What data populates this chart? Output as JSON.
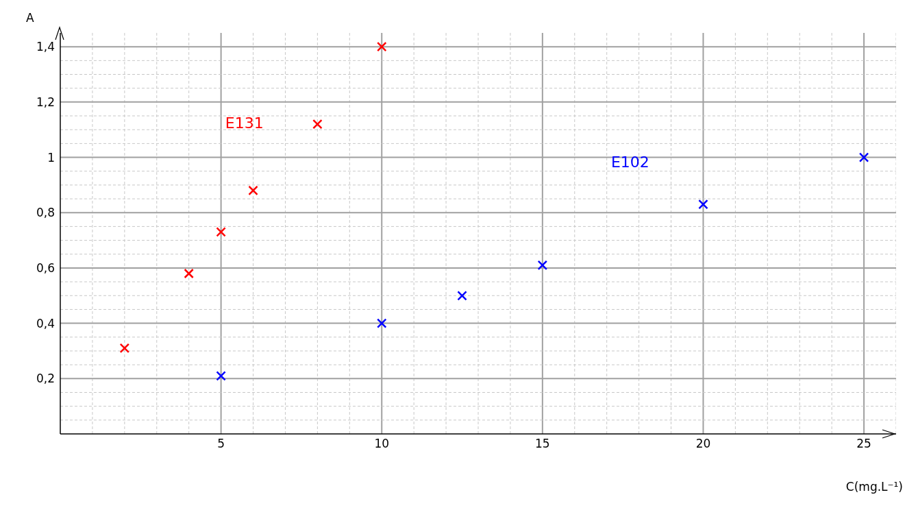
{
  "chart_data": {
    "type": "scatter",
    "xlabel": "C(mg.L⁻¹)",
    "ylabel": "A",
    "xlim": [
      0,
      26
    ],
    "ylim": [
      0,
      1.45
    ],
    "xticks": [
      {
        "value": 1,
        "label": null
      },
      {
        "value": 2,
        "label": null
      },
      {
        "value": 3,
        "label": null
      },
      {
        "value": 4,
        "label": null
      },
      5,
      {
        "value": 6,
        "label": null
      },
      {
        "value": 7,
        "label": null
      },
      {
        "value": 8,
        "label": null
      },
      {
        "value": 9,
        "label": null
      },
      10,
      {
        "value": 11,
        "label": null
      },
      {
        "value": 12,
        "label": null
      },
      {
        "value": 13,
        "label": null
      },
      {
        "value": 14,
        "label": null
      },
      15,
      {
        "value": 16,
        "label": null
      },
      {
        "value": 17,
        "label": null
      },
      {
        "value": 18,
        "label": null
      },
      {
        "value": 19,
        "label": null
      },
      20,
      {
        "value": 21,
        "label": null
      },
      {
        "value": 22,
        "label": null
      },
      {
        "value": 23,
        "label": null
      },
      {
        "value": 24,
        "label": null
      },
      25,
      {
        "value": 26,
        "label": null
      }
    ],
    "yticks": [
      {
        "value": 0.05,
        "label": null
      },
      {
        "value": 0.1,
        "label": null
      },
      {
        "value": 0.15,
        "label": null
      },
      {
        "value": 0.2,
        "label": "0,2"
      },
      {
        "value": 0.25,
        "label": null
      },
      {
        "value": 0.3,
        "label": null
      },
      {
        "value": 0.35,
        "label": null
      },
      {
        "value": 0.4,
        "label": "0,4"
      },
      {
        "value": 0.45,
        "label": null
      },
      {
        "value": 0.5,
        "label": null
      },
      {
        "value": 0.55,
        "label": null
      },
      {
        "value": 0.6,
        "label": "0,6"
      },
      {
        "value": 0.65,
        "label": null
      },
      {
        "value": 0.7,
        "label": null
      },
      {
        "value": 0.75,
        "label": null
      },
      {
        "value": 0.8,
        "label": "0,8"
      },
      {
        "value": 0.85,
        "label": null
      },
      {
        "value": 0.9,
        "label": null
      },
      {
        "value": 0.95,
        "label": null
      },
      1,
      {
        "value": 1.05,
        "label": null
      },
      {
        "value": 1.1,
        "label": null
      },
      {
        "value": 1.15,
        "label": null
      },
      {
        "value": 1.2,
        "label": "1,2"
      },
      {
        "value": 1.25,
        "label": null
      },
      {
        "value": 1.3,
        "label": null
      },
      {
        "value": 1.35,
        "label": null
      },
      {
        "value": 1.4,
        "label": "1,4"
      }
    ],
    "grid": true,
    "marker": "cross",
    "series": [
      {
        "name": "E131",
        "color": "#ff0000",
        "x": [
          2,
          4,
          5,
          6,
          8,
          10
        ],
        "values": [
          0.31,
          0.58,
          0.73,
          0.88,
          1.12,
          1.4
        ]
      },
      {
        "name": "E102",
        "color": "#0000ff",
        "x": [
          5,
          10,
          12.5,
          15,
          20,
          25
        ],
        "values": [
          0.21,
          0.4,
          0.5,
          0.61,
          0.83,
          1
        ]
      }
    ]
  }
}
